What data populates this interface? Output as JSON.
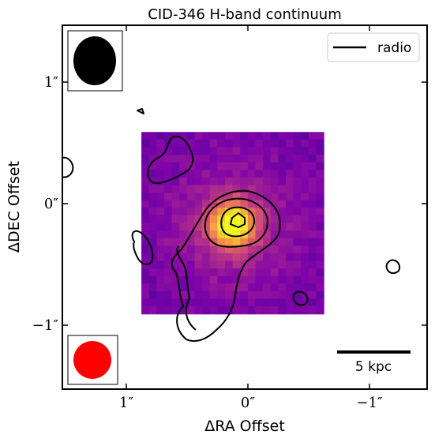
{
  "chart_data": {
    "type": "heatmap",
    "title": "CID-346 H-band continuum",
    "xlabel": "ΔRA Offset",
    "ylabel": "ΔDEC Offset",
    "xlim": [
      1.5,
      -1.5
    ],
    "ylim": [
      -1.5,
      1.5
    ],
    "x_ticks": [
      1,
      0,
      -1
    ],
    "x_tick_labels": [
      "1″",
      "0″",
      "−1″"
    ],
    "y_ticks": [
      1,
      0,
      -1
    ],
    "y_tick_labels": [
      "1″",
      "0″",
      "−1″"
    ],
    "image_extent": [
      0.85,
      -0.65,
      -0.88,
      0.62
    ],
    "image_peak": [
      0.1,
      -0.15
    ],
    "colormap": "plasma",
    "legend": {
      "entries": [
        "radio"
      ],
      "placement": "top-right"
    },
    "contour_color": "#000000",
    "beam_top_left_color": "#000000",
    "beam_bottom_left_color": "#ff0000",
    "scale_bar_label": "5 kpc",
    "grid": false
  }
}
